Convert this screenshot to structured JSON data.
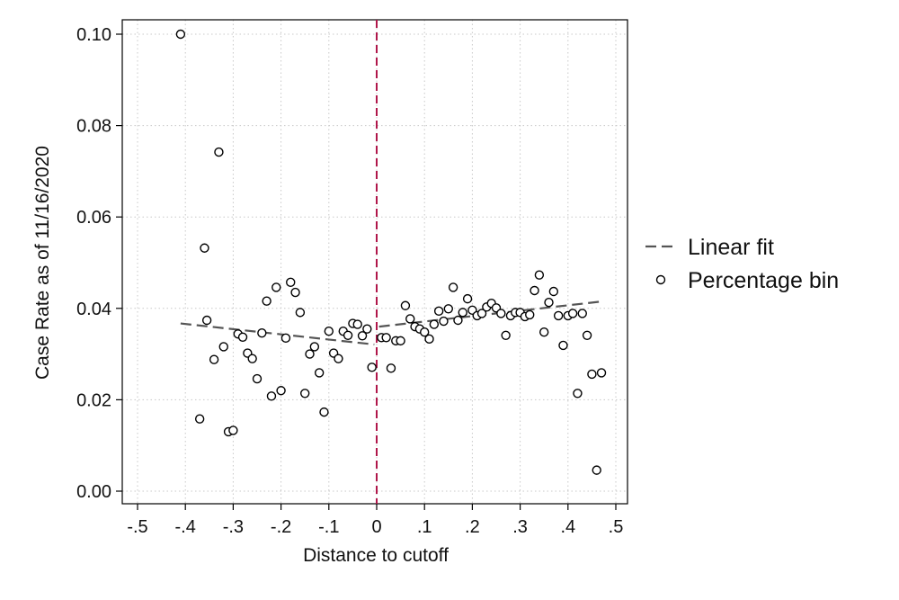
{
  "chart_data": {
    "type": "scatter",
    "xlabel": "Distance to cutoff",
    "ylabel": "Case Rate as of 11/16/2020",
    "xlim": [
      -0.5,
      0.5
    ],
    "ylim": [
      0,
      0.1
    ],
    "x_ticks": [
      -0.5,
      -0.4,
      -0.3,
      -0.2,
      -0.1,
      0,
      0.1,
      0.2,
      0.3,
      0.4,
      0.5
    ],
    "x_tick_labels": [
      "-.5",
      "-.4",
      "-.3",
      "-.2",
      "-.1",
      "0",
      ".1",
      ".2",
      ".3",
      ".4",
      ".5"
    ],
    "y_ticks": [
      0,
      0.02,
      0.04,
      0.06,
      0.08,
      0.1
    ],
    "y_tick_labels": [
      "0.00",
      "0.02",
      "0.04",
      "0.06",
      "0.08",
      "0.10"
    ],
    "grid": true,
    "legend_position": "right",
    "cutoff_x": 0,
    "cutoff_color": "#b0164a",
    "series": [
      {
        "name": "Percentage bin",
        "type": "scatter",
        "marker": "hollow-circle",
        "points": [
          [
            -0.41,
            0.1
          ],
          [
            -0.37,
            0.0158
          ],
          [
            -0.36,
            0.0532
          ],
          [
            -0.355,
            0.0374
          ],
          [
            -0.34,
            0.0288
          ],
          [
            -0.33,
            0.0742
          ],
          [
            -0.32,
            0.0316
          ],
          [
            -0.31,
            0.013
          ],
          [
            -0.3,
            0.0133
          ],
          [
            -0.29,
            0.0344
          ],
          [
            -0.28,
            0.0337
          ],
          [
            -0.27,
            0.0302
          ],
          [
            -0.26,
            0.029
          ],
          [
            -0.25,
            0.0246
          ],
          [
            -0.24,
            0.0346
          ],
          [
            -0.23,
            0.0416
          ],
          [
            -0.22,
            0.0208
          ],
          [
            -0.21,
            0.0446
          ],
          [
            -0.2,
            0.022
          ],
          [
            -0.19,
            0.0335
          ],
          [
            -0.18,
            0.0457
          ],
          [
            -0.17,
            0.0435
          ],
          [
            -0.16,
            0.0391
          ],
          [
            -0.15,
            0.0214
          ],
          [
            -0.14,
            0.03
          ],
          [
            -0.13,
            0.0316
          ],
          [
            -0.12,
            0.0259
          ],
          [
            -0.11,
            0.0173
          ],
          [
            -0.1,
            0.035
          ],
          [
            -0.09,
            0.0302
          ],
          [
            -0.08,
            0.029
          ],
          [
            -0.07,
            0.035
          ],
          [
            -0.06,
            0.0341
          ],
          [
            -0.05,
            0.0367
          ],
          [
            -0.04,
            0.0365
          ],
          [
            -0.03,
            0.034
          ],
          [
            -0.02,
            0.0355
          ],
          [
            -0.01,
            0.0271
          ],
          [
            0.01,
            0.0336
          ],
          [
            0.02,
            0.0336
          ],
          [
            0.03,
            0.0269
          ],
          [
            0.04,
            0.0329
          ],
          [
            0.05,
            0.0329
          ],
          [
            0.06,
            0.0406
          ],
          [
            0.07,
            0.0377
          ],
          [
            0.08,
            0.036
          ],
          [
            0.09,
            0.0355
          ],
          [
            0.1,
            0.0348
          ],
          [
            0.11,
            0.0333
          ],
          [
            0.12,
            0.0365
          ],
          [
            0.13,
            0.0394
          ],
          [
            0.14,
            0.0372
          ],
          [
            0.15,
            0.0399
          ],
          [
            0.16,
            0.0446
          ],
          [
            0.17,
            0.0374
          ],
          [
            0.18,
            0.0391
          ],
          [
            0.19,
            0.0421
          ],
          [
            0.2,
            0.0396
          ],
          [
            0.21,
            0.0384
          ],
          [
            0.22,
            0.0389
          ],
          [
            0.23,
            0.0403
          ],
          [
            0.24,
            0.0411
          ],
          [
            0.25,
            0.0401
          ],
          [
            0.26,
            0.0389
          ],
          [
            0.27,
            0.0341
          ],
          [
            0.28,
            0.0384
          ],
          [
            0.29,
            0.0391
          ],
          [
            0.3,
            0.0391
          ],
          [
            0.31,
            0.0382
          ],
          [
            0.32,
            0.0386
          ],
          [
            0.33,
            0.0439
          ],
          [
            0.34,
            0.0473
          ],
          [
            0.35,
            0.0348
          ],
          [
            0.36,
            0.0413
          ],
          [
            0.37,
            0.0437
          ],
          [
            0.38,
            0.0384
          ],
          [
            0.39,
            0.0319
          ],
          [
            0.4,
            0.0384
          ],
          [
            0.41,
            0.0389
          ],
          [
            0.42,
            0.0214
          ],
          [
            0.43,
            0.0389
          ],
          [
            0.44,
            0.0341
          ],
          [
            0.45,
            0.0256
          ],
          [
            0.46,
            0.0046
          ],
          [
            0.47,
            0.0259
          ]
        ]
      },
      {
        "name": "Linear fit",
        "type": "line",
        "style": "dashed",
        "segments": [
          [
            [
              -0.41,
              0.0367
            ],
            [
              -0.005,
              0.0321
            ]
          ],
          [
            [
              0.005,
              0.036
            ],
            [
              0.47,
              0.0415
            ]
          ]
        ]
      }
    ],
    "legend": [
      {
        "label": "Linear fit",
        "symbol": "dashed-line"
      },
      {
        "label": "Percentage bin",
        "symbol": "hollow-circle"
      }
    ]
  }
}
